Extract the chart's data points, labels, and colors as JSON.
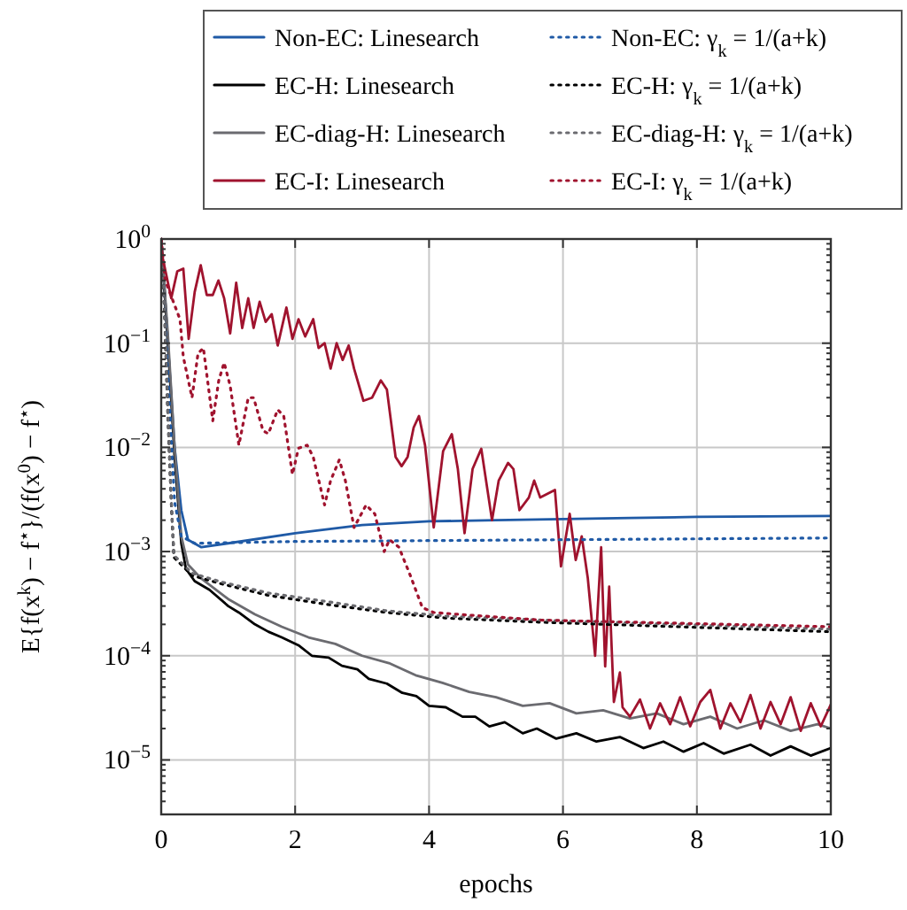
{
  "chart_data": {
    "type": "line",
    "xlabel": "epochs",
    "ylabel": "E{f(x$^{k}$) − f$^{⋆}$}/(f(x$^{0}$) − f$^{⋆}$)",
    "log": "y",
    "grid": true,
    "legend": "top",
    "line_style": "solid",
    "marker": "none",
    "xlim": [
      0,
      10
    ],
    "xticks": [
      0,
      2,
      4,
      6,
      8,
      10
    ],
    "ylim": [
      3e-06,
      1
    ],
    "yticks": [
      {
        "value": 1,
        "label": "10$^{0}$"
      },
      {
        "value": 0.1,
        "label": "10$^{−1}$"
      },
      {
        "value": 0.01,
        "label": "10$^{−2}$"
      },
      {
        "value": 0.001,
        "label": "10$^{−3}$"
      },
      {
        "value": 0.0001,
        "label": "10$^{−4}$"
      },
      {
        "value": 1e-05,
        "label": "10$^{−5}$"
      },
      {
        "value": 3e-06,
        "label": null
      },
      {
        "value": 4e-06,
        "label": null
      },
      {
        "value": 5e-06,
        "label": null
      },
      {
        "value": 6e-06,
        "label": null
      },
      {
        "value": 7e-06,
        "label": null
      },
      {
        "value": 8e-06,
        "label": null
      },
      {
        "value": 9e-06,
        "label": null
      },
      {
        "value": 2e-05,
        "label": null
      },
      {
        "value": 3e-05,
        "label": null
      },
      {
        "value": 4e-05,
        "label": null
      },
      {
        "value": 5e-05,
        "label": null
      },
      {
        "value": 6e-05,
        "label": null
      },
      {
        "value": 7e-05,
        "label": null
      },
      {
        "value": 8e-05,
        "label": null
      },
      {
        "value": 9e-05,
        "label": null
      },
      {
        "value": 0.0002,
        "label": null
      },
      {
        "value": 0.0003,
        "label": null
      },
      {
        "value": 0.0004,
        "label": null
      },
      {
        "value": 0.0005,
        "label": null
      },
      {
        "value": 0.0006,
        "label": null
      },
      {
        "value": 0.0007,
        "label": null
      },
      {
        "value": 0.0008,
        "label": null
      },
      {
        "value": 0.0009,
        "label": null
      },
      {
        "value": 0.002,
        "label": null
      },
      {
        "value": 0.003,
        "label": null
      },
      {
        "value": 0.004,
        "label": null
      },
      {
        "value": 0.005,
        "label": null
      },
      {
        "value": 0.006,
        "label": null
      },
      {
        "value": 0.007,
        "label": null
      },
      {
        "value": 0.008,
        "label": null
      },
      {
        "value": 0.009,
        "label": null
      },
      {
        "value": 0.02,
        "label": null
      },
      {
        "value": 0.03,
        "label": null
      },
      {
        "value": 0.04,
        "label": null
      },
      {
        "value": 0.05,
        "label": null
      },
      {
        "value": 0.06,
        "label": null
      },
      {
        "value": 0.07,
        "label": null
      },
      {
        "value": 0.08,
        "label": null
      },
      {
        "value": 0.09,
        "label": null
      },
      {
        "value": 0.2,
        "label": null
      },
      {
        "value": 0.3,
        "label": null
      },
      {
        "value": 0.4,
        "label": null
      },
      {
        "value": 0.5,
        "label": null
      },
      {
        "value": 0.6,
        "label": null
      },
      {
        "value": 0.7,
        "label": null
      },
      {
        "value": 0.8,
        "label": null
      },
      {
        "value": 0.9,
        "label": null
      }
    ],
    "series": [
      {
        "name": "Non-EC: Linesearch",
        "color": "#1f5aa6",
        "x": [
          0,
          0.1,
          0.2,
          0.3,
          0.4,
          0.6,
          1,
          2,
          3,
          4,
          5,
          6,
          7,
          8,
          10
        ],
        "values": [
          1,
          0.1,
          0.01,
          0.0025,
          0.0013,
          0.0011,
          0.0012,
          0.0015,
          0.0018,
          0.00195,
          0.002,
          0.00205,
          0.0021,
          0.00215,
          0.0022
        ]
      },
      {
        "name": "EC-H: Linesearch",
        "color": "#000000",
        "x": [
          0,
          0.1,
          0.2,
          0.3,
          0.37,
          0.5,
          0.72,
          1,
          1.16,
          1.4,
          1.6,
          1.8,
          2.05,
          2.25,
          2.5,
          2.7,
          2.93,
          3.1,
          3.37,
          3.6,
          3.81,
          4,
          4.25,
          4.5,
          4.69,
          4.9,
          5.13,
          5.4,
          5.61,
          5.9,
          6.2,
          6.5,
          6.85,
          7.2,
          7.5,
          7.8,
          8.1,
          8.4,
          8.8,
          9.1,
          9.4,
          9.7,
          10
        ],
        "values": [
          1,
          0.1,
          0.008,
          0.0012,
          0.00068,
          0.00052,
          0.00043,
          0.0003,
          0.00026,
          0.0002,
          0.00017,
          0.00015,
          0.000126,
          0.0001,
          9.6e-05,
          8e-05,
          7.4e-05,
          6e-05,
          5.4e-05,
          4.4e-05,
          4.1e-05,
          3.3e-05,
          3.2e-05,
          2.6e-05,
          2.6e-05,
          2.1e-05,
          2.3e-05,
          1.8e-05,
          2e-05,
          1.6e-05,
          1.8e-05,
          1.5e-05,
          1.66e-05,
          1.3e-05,
          1.5e-05,
          1.2e-05,
          1.45e-05,
          1.15e-05,
          1.4e-05,
          1.1e-05,
          1.35e-05,
          1.1e-05,
          1.3e-05
        ]
      },
      {
        "name": "EC-diag-H: Linesearch",
        "color": "#6b6b70",
        "x": [
          0,
          0.1,
          0.2,
          0.3,
          0.4,
          0.6,
          1,
          1.4,
          1.8,
          2.2,
          2.6,
          3,
          3.4,
          3.8,
          4.2,
          4.6,
          5,
          5.4,
          5.8,
          6.2,
          6.6,
          7,
          7.4,
          7.8,
          8.2,
          8.6,
          9,
          9.4,
          9.8,
          10
        ],
        "values": [
          1,
          0.12,
          0.01,
          0.0014,
          0.00075,
          0.00055,
          0.00035,
          0.00025,
          0.00019,
          0.00015,
          0.00013,
          0.0001,
          8.5e-05,
          6.5e-05,
          5.5e-05,
          4.5e-05,
          4e-05,
          3.3e-05,
          3.5e-05,
          2.8e-05,
          3e-05,
          2.5e-05,
          2.8e-05,
          2.2e-05,
          2.6e-05,
          2e-05,
          2.4e-05,
          1.9e-05,
          2.2e-05,
          2e-05
        ]
      },
      {
        "name": "EC-I: Linesearch",
        "color": "#a0132e",
        "x": [
          0,
          0.018,
          0.15,
          0.24,
          0.33,
          0.41,
          0.5,
          0.59,
          0.68,
          0.77,
          0.855,
          0.94,
          1.03,
          1.12,
          1.21,
          1.3,
          1.38,
          1.47,
          1.56,
          1.65,
          1.74,
          1.87,
          1.96,
          2.05,
          2.15,
          2.27,
          2.35,
          2.44,
          2.53,
          2.62,
          2.71,
          2.8,
          2.88,
          3.02,
          3.15,
          3.28,
          3.37,
          3.5,
          3.59,
          3.68,
          3.77,
          3.85,
          3.94,
          4.07,
          4.21,
          4.34,
          4.43,
          4.53,
          4.65,
          4.78,
          4.94,
          5.04,
          5.18,
          5.26,
          5.35,
          5.49,
          5.57,
          5.66,
          5.88,
          5.97,
          6.1,
          6.19,
          6.28,
          6.37,
          6.48,
          6.57,
          6.63,
          6.69,
          6.76,
          6.85,
          6.89,
          7,
          7.15,
          7.3,
          7.45,
          7.6,
          7.75,
          7.9,
          8.05,
          8.2,
          8.35,
          8.5,
          8.65,
          8.8,
          8.95,
          9.1,
          9.25,
          9.4,
          9.55,
          9.7,
          9.85,
          10
        ],
        "values": [
          1,
          0.68,
          0.27,
          0.49,
          0.52,
          0.11,
          0.31,
          0.56,
          0.29,
          0.29,
          0.4,
          0.27,
          0.124,
          0.38,
          0.14,
          0.27,
          0.14,
          0.25,
          0.16,
          0.19,
          0.095,
          0.22,
          0.11,
          0.17,
          0.116,
          0.17,
          0.09,
          0.1,
          0.057,
          0.1,
          0.069,
          0.095,
          0.057,
          0.028,
          0.03,
          0.044,
          0.036,
          0.0081,
          0.0066,
          0.0081,
          0.0155,
          0.02,
          0.0105,
          0.0017,
          0.0092,
          0.0134,
          0.0062,
          0.0015,
          0.0062,
          0.0097,
          0.002,
          0.0048,
          0.0071,
          0.0062,
          0.0025,
          0.0033,
          0.0048,
          0.0033,
          0.0039,
          0.00072,
          0.0023,
          0.00083,
          0.0014,
          0.00056,
          0.0001,
          0.0011,
          7.9e-05,
          0.00046,
          3.6e-05,
          6.9e-05,
          3.2e-05,
          2.6e-05,
          3.8e-05,
          2e-05,
          3.5e-05,
          2.2e-05,
          4e-05,
          2.1e-05,
          3.6e-05,
          4.7e-05,
          2e-05,
          3.5e-05,
          2.3e-05,
          4.2e-05,
          2e-05,
          3.6e-05,
          2.2e-05,
          4e-05,
          1.9e-05,
          3.5e-05,
          2.1e-05,
          3.4e-05
        ]
      },
      {
        "name": "Non-EC: γ$_{k}$ = 1/(a+k)",
        "color": "#1f5aa6",
        "line_style": "dotted",
        "x": [
          0,
          0.1,
          0.2,
          0.3,
          0.5,
          2,
          10
        ],
        "values": [
          1,
          0.05,
          0.003,
          0.0014,
          0.0012,
          0.00125,
          0.00135
        ]
      },
      {
        "name": "EC-H: γ$_{k}$ = 1/(a+k)",
        "color": "#000000",
        "line_style": "dotted",
        "x": [
          0,
          0.05,
          0.1,
          0.15,
          0.19,
          0.46,
          0.9,
          1.6,
          2.49,
          3.37,
          4.25,
          5.66,
          10
        ],
        "values": [
          1,
          0.2,
          0.02,
          0.003,
          0.00088,
          0.00059,
          0.00049,
          0.00038,
          0.00031,
          0.00026,
          0.00023,
          0.00021,
          0.00017
        ]
      },
      {
        "name": "EC-diag-H: γ$_{k}$ = 1/(a+k)",
        "color": "#6b6b70",
        "line_style": "dotted",
        "x": [
          0,
          0.05,
          0.1,
          0.15,
          0.19,
          0.46,
          0.9,
          1.6,
          2.49,
          3.37,
          4.25,
          5.66,
          10
        ],
        "values": [
          1,
          0.22,
          0.022,
          0.0032,
          0.00092,
          0.00062,
          0.00051,
          0.0004,
          0.00033,
          0.00027,
          0.00024,
          0.00022,
          0.00018
        ]
      },
      {
        "name": "EC-I: γ$_{k}$ = 1/(a+k)",
        "color": "#a0132e",
        "line_style": "dotted",
        "x": [
          0,
          0.06,
          0.28,
          0.33,
          0.46,
          0.55,
          0.63,
          0.77,
          0.86,
          0.94,
          1.03,
          1.16,
          1.3,
          1.38,
          1.52,
          1.6,
          1.74,
          1.83,
          1.96,
          2.05,
          2.18,
          2.27,
          2.44,
          2.53,
          2.66,
          2.75,
          2.88,
          3.06,
          3.19,
          3.33,
          3.41,
          3.55,
          3.72,
          3.9,
          4.07,
          4.43,
          5.66,
          10
        ],
        "values": [
          1,
          0.4,
          0.17,
          0.074,
          0.03,
          0.08,
          0.09,
          0.018,
          0.044,
          0.065,
          0.039,
          0.0105,
          0.03,
          0.03,
          0.0145,
          0.0135,
          0.023,
          0.02,
          0.0055,
          0.0098,
          0.0105,
          0.0081,
          0.0028,
          0.0048,
          0.0076,
          0.0048,
          0.0017,
          0.0028,
          0.0023,
          0.001,
          0.0013,
          0.0011,
          0.00059,
          0.00029,
          0.00026,
          0.00025,
          0.00022,
          0.00019
        ]
      }
    ]
  }
}
